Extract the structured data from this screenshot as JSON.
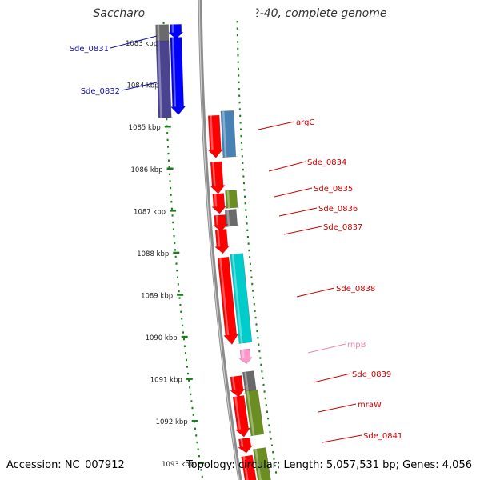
{
  "title": "Saccharophagus degradans 2-40, complete genome",
  "footer": {
    "accession": "Accession: NC_007912",
    "topology": "Topology: circular; Length: 5,057,531 bp; Genes: 4,056"
  },
  "ticks": [
    "1083 kbp",
    "1084 kbp",
    "1085 kbp",
    "1086 kbp",
    "1087 kbp",
    "1088 kbp",
    "1089 kbp",
    "1090 kbp",
    "1091 kbp",
    "1092 kbp",
    "1093 kbp"
  ],
  "colors": {
    "backbone": "#8c8c8c",
    "tick": "#1a7f1a",
    "left_label": "#1010aa",
    "right_label": "#cc0000",
    "rna_label": "#ee88aa",
    "cds_red": "#ff0000",
    "blue": "#0000ff",
    "navy": "#4a4490",
    "steel": "#4682b4",
    "olive": "#6b8e23",
    "grey": "#6a6a6a",
    "cyan": "#00cccc",
    "pink": "#ff99cc"
  },
  "left_labels": [
    {
      "text": "Sde_0831",
      "color": "left_label"
    },
    {
      "text": "Sde_0832",
      "color": "left_label"
    }
  ],
  "right_labels": [
    {
      "text": "argC",
      "color": "right_label"
    },
    {
      "text": "Sde_0834",
      "color": "right_label"
    },
    {
      "text": "Sde_0835",
      "color": "right_label"
    },
    {
      "text": "Sde_0836",
      "color": "right_label"
    },
    {
      "text": "Sde_0837",
      "color": "right_label"
    },
    {
      "text": "Sde_0838",
      "color": "right_label"
    },
    {
      "text": "rnpB",
      "color": "rna_label"
    },
    {
      "text": "Sde_0839",
      "color": "right_label"
    },
    {
      "text": "mraW",
      "color": "right_label"
    },
    {
      "text": "Sde_0841",
      "color": "right_label"
    }
  ]
}
